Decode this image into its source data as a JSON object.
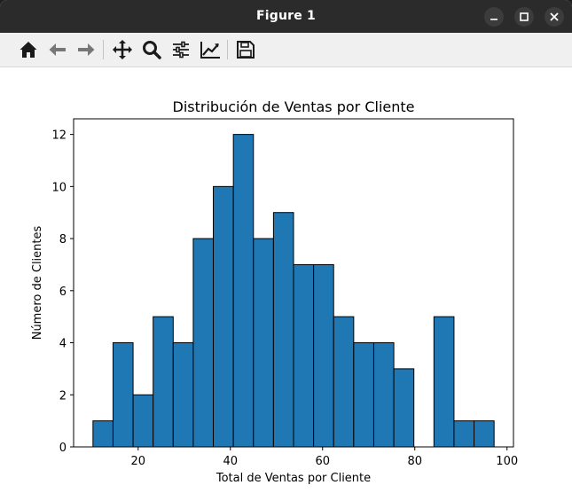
{
  "window": {
    "title": "Figure 1",
    "controls": [
      "minimize-icon",
      "maximize-icon",
      "close-icon"
    ]
  },
  "toolbar": {
    "buttons": [
      "home-icon",
      "back-arrow-icon",
      "forward-arrow-icon",
      "pan-icon",
      "zoom-icon",
      "subplots-config-icon",
      "edit-axes-icon",
      "save-icon"
    ]
  },
  "colors": {
    "bar_fill": "#1f77b4",
    "bar_edge": "#000000",
    "titlebar": "#2b2b2b",
    "toolbar": "#f0f0f0"
  },
  "chart_data": {
    "type": "bar",
    "title": "Distribución de Ventas por Cliente",
    "xlabel": "Total de Ventas por Cliente",
    "ylabel": "Número de Clientes",
    "bin_edges": [
      10.2,
      14.55,
      18.9,
      23.25,
      27.6,
      31.95,
      36.3,
      40.65,
      45.0,
      49.35,
      53.7,
      58.05,
      62.4,
      66.75,
      71.1,
      75.45,
      79.8,
      84.15,
      88.5,
      92.85,
      97.2
    ],
    "values": [
      1,
      4,
      2,
      5,
      4,
      8,
      10,
      12,
      8,
      9,
      7,
      7,
      5,
      4,
      4,
      3,
      0,
      5,
      1,
      1
    ],
    "xlim": [
      6.0,
      101.4
    ],
    "ylim": [
      0,
      12.6
    ],
    "xticks": [
      20,
      40,
      60,
      80,
      100
    ],
    "yticks": [
      0,
      2,
      4,
      6,
      8,
      10,
      12
    ],
    "grid": false,
    "legend": "none"
  }
}
